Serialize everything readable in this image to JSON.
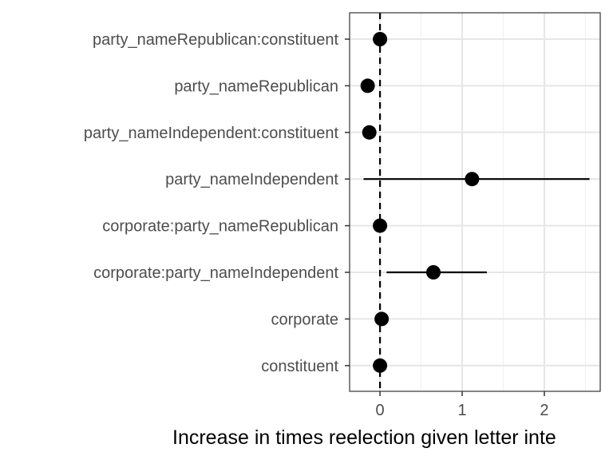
{
  "chart_data": {
    "type": "scatter",
    "subtype": "coefficient-plot-with-error-bars",
    "xlabel": "Increase in times reelection given letter inte",
    "ylabel": "",
    "title": "",
    "xlim": [
      -0.37,
      2.68
    ],
    "xticks": [
      0,
      1,
      2
    ],
    "reference_line_x": 0,
    "grid": true,
    "terms": [
      {
        "label": "party_nameRepublican:constituent",
        "estimate": 0.0,
        "low": 0.0,
        "high": 0.0
      },
      {
        "label": "party_nameRepublican",
        "estimate": -0.15,
        "low": -0.15,
        "high": -0.15
      },
      {
        "label": "party_nameIndependent:constituent",
        "estimate": -0.13,
        "low": -0.13,
        "high": -0.13
      },
      {
        "label": "party_nameIndependent",
        "estimate": 1.12,
        "low": -0.2,
        "high": 2.55
      },
      {
        "label": "corporate:party_nameRepublican",
        "estimate": 0.0,
        "low": 0.0,
        "high": 0.0
      },
      {
        "label": "corporate:party_nameIndependent",
        "estimate": 0.65,
        "low": 0.08,
        "high": 1.3
      },
      {
        "label": "corporate",
        "estimate": 0.02,
        "low": 0.02,
        "high": 0.02
      },
      {
        "label": "constituent",
        "estimate": 0.0,
        "low": 0.0,
        "high": 0.0
      }
    ]
  }
}
